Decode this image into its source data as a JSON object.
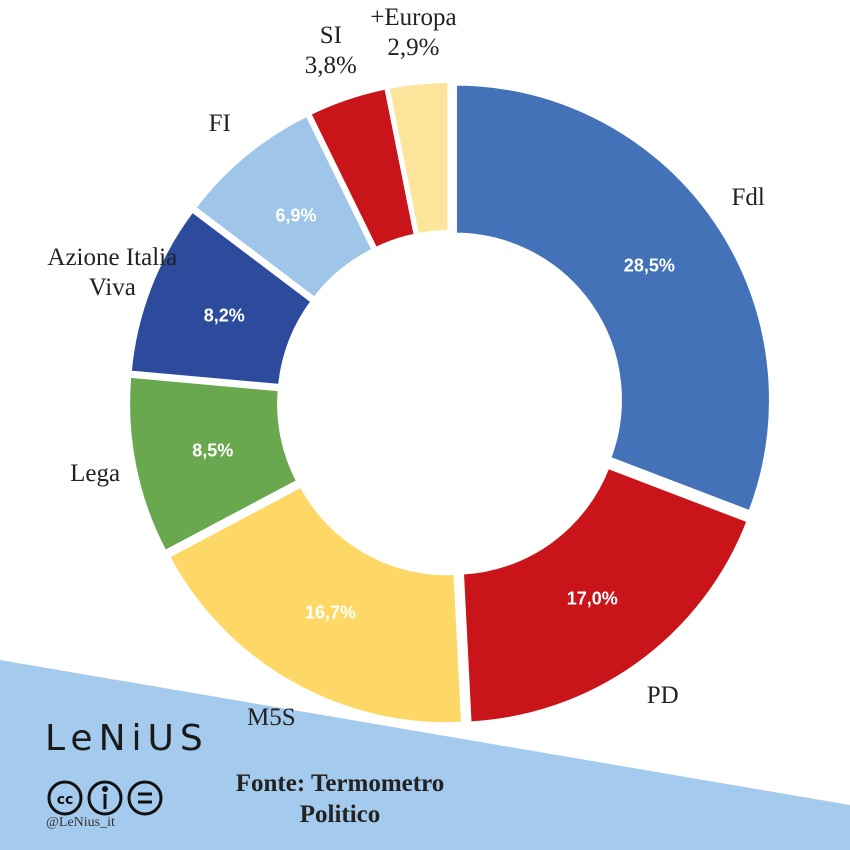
{
  "chart_data": {
    "type": "donut",
    "categories": [
      "Fdl",
      "PD",
      "M5S",
      "Lega",
      "Azione Italia Viva",
      "FI",
      "SI",
      "+Europa"
    ],
    "values": [
      28.5,
      17.0,
      16.7,
      8.5,
      8.2,
      6.9,
      3.8,
      2.9
    ],
    "value_labels": [
      "28,5%",
      "17,0%",
      "16,7%",
      "8,5%",
      "8,2%",
      "6,9%",
      "3,8%",
      "2,9%"
    ],
    "colors": [
      "#4472b8",
      "#c9151a",
      "#fdd867",
      "#6aa84f",
      "#2c4b9d",
      "#9fc5e9",
      "#c9151a",
      "#fde49b"
    ]
  },
  "logo": "LeNiUS",
  "handle": "@LeNius_it",
  "source": "Fonte: Termometro Politico"
}
